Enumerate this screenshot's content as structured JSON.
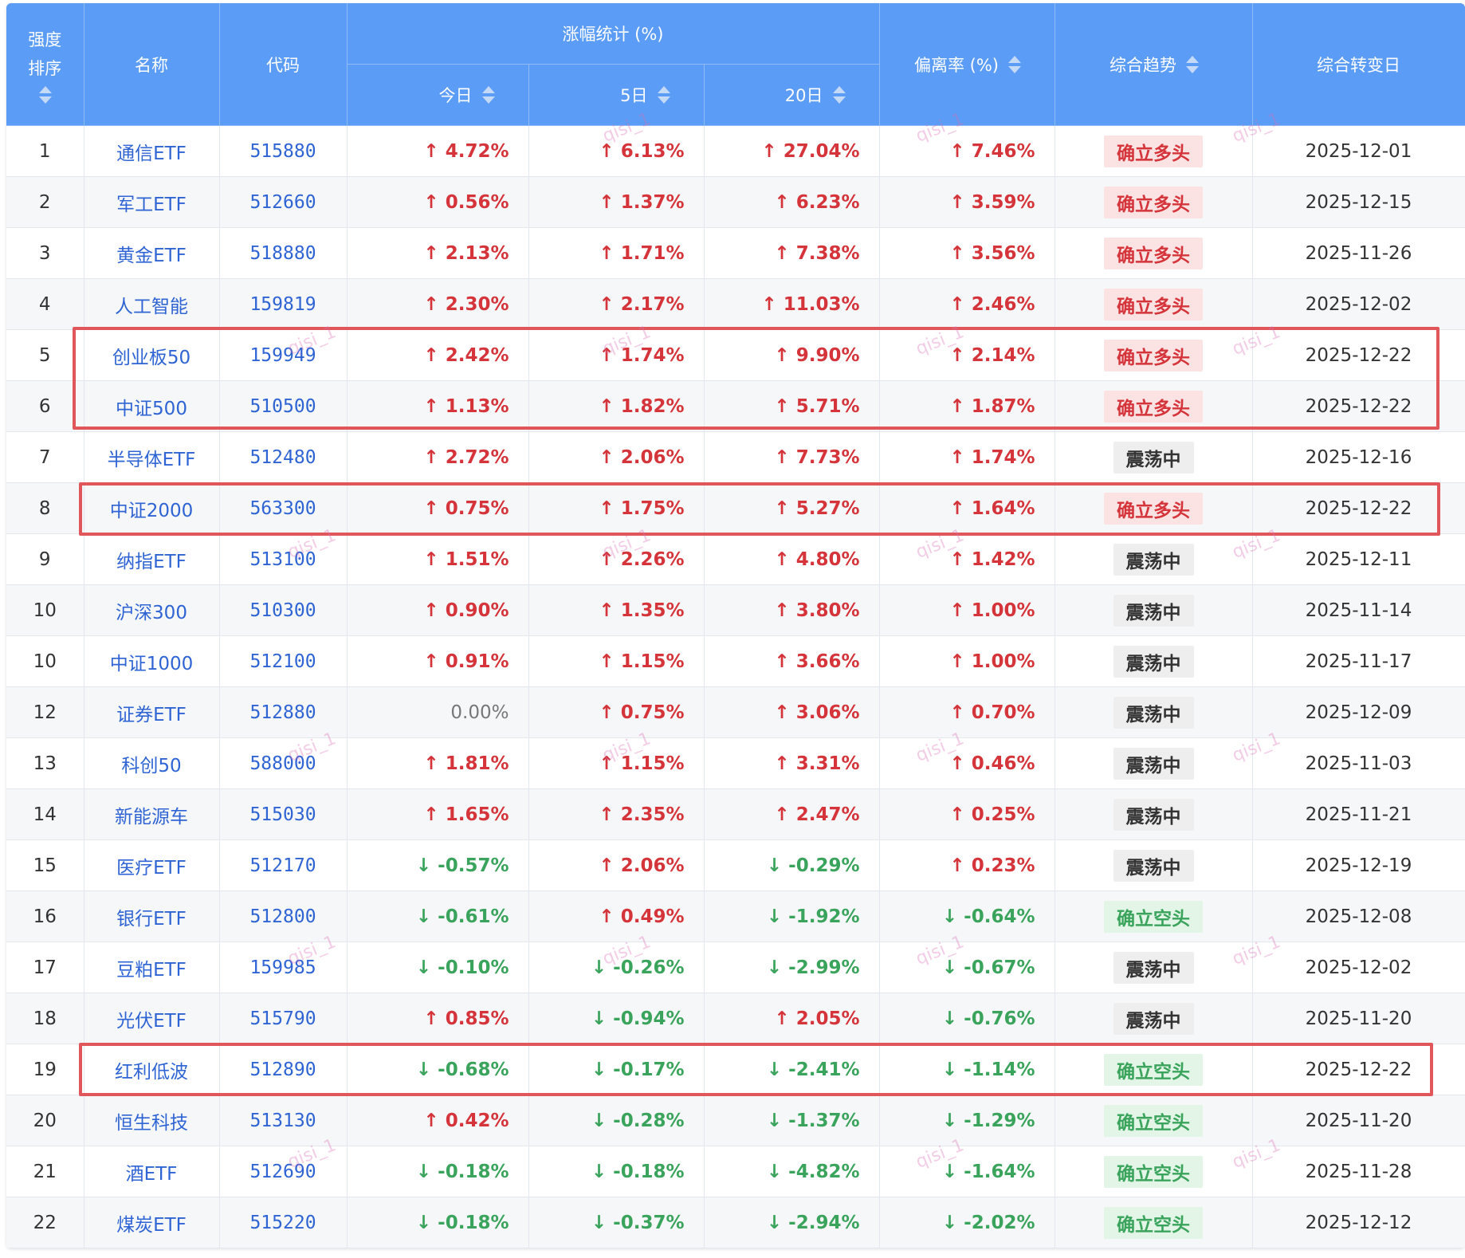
{
  "headers": {
    "rank_line1": "强度",
    "rank_line2": "排序",
    "name": "名称",
    "code": "代码",
    "gain_group": "涨幅统计 (%)",
    "today": "今日",
    "d5": "5日",
    "d20": "20日",
    "deviation": "偏离率 (%)",
    "trend": "综合趋势",
    "turn_date": "综合转变日"
  },
  "watermark": "qisi_1",
  "rows": [
    {
      "rank": "1",
      "name": "通信ETF",
      "code": "515880",
      "today": "↑ 4.72%",
      "today_dir": "up",
      "d5": "↑ 6.13%",
      "d5_dir": "up",
      "d20": "↑ 27.04%",
      "d20_dir": "up",
      "dev": "↑ 7.46%",
      "dev_dir": "up",
      "trend": "确立多头",
      "trend_type": "up",
      "date": "2025-12-01"
    },
    {
      "rank": "2",
      "name": "军工ETF",
      "code": "512660",
      "today": "↑ 0.56%",
      "today_dir": "up",
      "d5": "↑ 1.37%",
      "d5_dir": "up",
      "d20": "↑ 6.23%",
      "d20_dir": "up",
      "dev": "↑ 3.59%",
      "dev_dir": "up",
      "trend": "确立多头",
      "trend_type": "up",
      "date": "2025-12-15"
    },
    {
      "rank": "3",
      "name": "黄金ETF",
      "code": "518880",
      "today": "↑ 2.13%",
      "today_dir": "up",
      "d5": "↑ 1.71%",
      "d5_dir": "up",
      "d20": "↑ 7.38%",
      "d20_dir": "up",
      "dev": "↑ 3.56%",
      "dev_dir": "up",
      "trend": "确立多头",
      "trend_type": "up",
      "date": "2025-11-26"
    },
    {
      "rank": "4",
      "name": "人工智能",
      "code": "159819",
      "today": "↑ 2.30%",
      "today_dir": "up",
      "d5": "↑ 2.17%",
      "d5_dir": "up",
      "d20": "↑ 11.03%",
      "d20_dir": "up",
      "dev": "↑ 2.46%",
      "dev_dir": "up",
      "trend": "确立多头",
      "trend_type": "up",
      "date": "2025-12-02"
    },
    {
      "rank": "5",
      "name": "创业板50",
      "code": "159949",
      "today": "↑ 2.42%",
      "today_dir": "up",
      "d5": "↑ 1.74%",
      "d5_dir": "up",
      "d20": "↑ 9.90%",
      "d20_dir": "up",
      "dev": "↑ 2.14%",
      "dev_dir": "up",
      "trend": "确立多头",
      "trend_type": "up",
      "date": "2025-12-22"
    },
    {
      "rank": "6",
      "name": "中证500",
      "code": "510500",
      "today": "↑ 1.13%",
      "today_dir": "up",
      "d5": "↑ 1.82%",
      "d5_dir": "up",
      "d20": "↑ 5.71%",
      "d20_dir": "up",
      "dev": "↑ 1.87%",
      "dev_dir": "up",
      "trend": "确立多头",
      "trend_type": "up",
      "date": "2025-12-22"
    },
    {
      "rank": "7",
      "name": "半导体ETF",
      "code": "512480",
      "today": "↑ 2.72%",
      "today_dir": "up",
      "d5": "↑ 2.06%",
      "d5_dir": "up",
      "d20": "↑ 7.73%",
      "d20_dir": "up",
      "dev": "↑ 1.74%",
      "dev_dir": "up",
      "trend": "震荡中",
      "trend_type": "flat",
      "date": "2025-12-16"
    },
    {
      "rank": "8",
      "name": "中证2000",
      "code": "563300",
      "today": "↑ 0.75%",
      "today_dir": "up",
      "d5": "↑ 1.75%",
      "d5_dir": "up",
      "d20": "↑ 5.27%",
      "d20_dir": "up",
      "dev": "↑ 1.64%",
      "dev_dir": "up",
      "trend": "确立多头",
      "trend_type": "up",
      "date": "2025-12-22"
    },
    {
      "rank": "9",
      "name": "纳指ETF",
      "code": "513100",
      "today": "↑ 1.51%",
      "today_dir": "up",
      "d5": "↑ 2.26%",
      "d5_dir": "up",
      "d20": "↑ 4.80%",
      "d20_dir": "up",
      "dev": "↑ 1.42%",
      "dev_dir": "up",
      "trend": "震荡中",
      "trend_type": "flat",
      "date": "2025-12-11"
    },
    {
      "rank": "10",
      "name": "沪深300",
      "code": "510300",
      "today": "↑ 0.90%",
      "today_dir": "up",
      "d5": "↑ 1.35%",
      "d5_dir": "up",
      "d20": "↑ 3.80%",
      "d20_dir": "up",
      "dev": "↑ 1.00%",
      "dev_dir": "up",
      "trend": "震荡中",
      "trend_type": "flat",
      "date": "2025-11-14"
    },
    {
      "rank": "10",
      "name": "中证1000",
      "code": "512100",
      "today": "↑ 0.91%",
      "today_dir": "up",
      "d5": "↑ 1.15%",
      "d5_dir": "up",
      "d20": "↑ 3.66%",
      "d20_dir": "up",
      "dev": "↑ 1.00%",
      "dev_dir": "up",
      "trend": "震荡中",
      "trend_type": "flat",
      "date": "2025-11-17"
    },
    {
      "rank": "12",
      "name": "证券ETF",
      "code": "512880",
      "today": "0.00%",
      "today_dir": "flat",
      "d5": "↑ 0.75%",
      "d5_dir": "up",
      "d20": "↑ 3.06%",
      "d20_dir": "up",
      "dev": "↑ 0.70%",
      "dev_dir": "up",
      "trend": "震荡中",
      "trend_type": "flat",
      "date": "2025-12-09"
    },
    {
      "rank": "13",
      "name": "科创50",
      "code": "588000",
      "today": "↑ 1.81%",
      "today_dir": "up",
      "d5": "↑ 1.15%",
      "d5_dir": "up",
      "d20": "↑ 3.31%",
      "d20_dir": "up",
      "dev": "↑ 0.46%",
      "dev_dir": "up",
      "trend": "震荡中",
      "trend_type": "flat",
      "date": "2025-11-03"
    },
    {
      "rank": "14",
      "name": "新能源车",
      "code": "515030",
      "today": "↑ 1.65%",
      "today_dir": "up",
      "d5": "↑ 2.35%",
      "d5_dir": "up",
      "d20": "↑ 2.47%",
      "d20_dir": "up",
      "dev": "↑ 0.25%",
      "dev_dir": "up",
      "trend": "震荡中",
      "trend_type": "flat",
      "date": "2025-11-21"
    },
    {
      "rank": "15",
      "name": "医疗ETF",
      "code": "512170",
      "today": "↓ -0.57%",
      "today_dir": "down",
      "d5": "↑ 2.06%",
      "d5_dir": "up",
      "d20": "↓ -0.29%",
      "d20_dir": "down",
      "dev": "↑ 0.23%",
      "dev_dir": "up",
      "trend": "震荡中",
      "trend_type": "flat",
      "date": "2025-12-19"
    },
    {
      "rank": "16",
      "name": "银行ETF",
      "code": "512800",
      "today": "↓ -0.61%",
      "today_dir": "down",
      "d5": "↑ 0.49%",
      "d5_dir": "up",
      "d20": "↓ -1.92%",
      "d20_dir": "down",
      "dev": "↓ -0.64%",
      "dev_dir": "down",
      "trend": "确立空头",
      "trend_type": "down",
      "date": "2025-12-08"
    },
    {
      "rank": "17",
      "name": "豆粕ETF",
      "code": "159985",
      "today": "↓ -0.10%",
      "today_dir": "down",
      "d5": "↓ -0.26%",
      "d5_dir": "down",
      "d20": "↓ -2.99%",
      "d20_dir": "down",
      "dev": "↓ -0.67%",
      "dev_dir": "down",
      "trend": "震荡中",
      "trend_type": "flat",
      "date": "2025-12-02"
    },
    {
      "rank": "18",
      "name": "光伏ETF",
      "code": "515790",
      "today": "↑ 0.85%",
      "today_dir": "up",
      "d5": "↓ -0.94%",
      "d5_dir": "down",
      "d20": "↑ 2.05%",
      "d20_dir": "up",
      "dev": "↓ -0.76%",
      "dev_dir": "down",
      "trend": "震荡中",
      "trend_type": "flat",
      "date": "2025-11-20"
    },
    {
      "rank": "19",
      "name": "红利低波",
      "code": "512890",
      "today": "↓ -0.68%",
      "today_dir": "down",
      "d5": "↓ -0.17%",
      "d5_dir": "down",
      "d20": "↓ -2.41%",
      "d20_dir": "down",
      "dev": "↓ -1.14%",
      "dev_dir": "down",
      "trend": "确立空头",
      "trend_type": "down",
      "date": "2025-12-22"
    },
    {
      "rank": "20",
      "name": "恒生科技",
      "code": "513130",
      "today": "↑ 0.42%",
      "today_dir": "up",
      "d5": "↓ -0.28%",
      "d5_dir": "down",
      "d20": "↓ -1.37%",
      "d20_dir": "down",
      "dev": "↓ -1.29%",
      "dev_dir": "down",
      "trend": "确立空头",
      "trend_type": "down",
      "date": "2025-11-20"
    },
    {
      "rank": "21",
      "name": "酒ETF",
      "code": "512690",
      "today": "↓ -0.18%",
      "today_dir": "down",
      "d5": "↓ -0.18%",
      "d5_dir": "down",
      "d20": "↓ -4.82%",
      "d20_dir": "down",
      "dev": "↓ -1.64%",
      "dev_dir": "down",
      "trend": "确立空头",
      "trend_type": "down",
      "date": "2025-11-28"
    },
    {
      "rank": "22",
      "name": "煤炭ETF",
      "code": "515220",
      "today": "↓ -0.18%",
      "today_dir": "down",
      "d5": "↓ -0.37%",
      "d5_dir": "down",
      "d20": "↓ -2.94%",
      "d20_dir": "down",
      "dev": "↓ -2.02%",
      "dev_dir": "down",
      "trend": "确立空头",
      "trend_type": "down",
      "date": "2025-12-12"
    }
  ],
  "colors": {
    "header_bg": "#5b9cf6",
    "up": "#d4343a",
    "down": "#3aa35c",
    "highlight_border": "#e0565b",
    "link": "#2f64d4"
  }
}
